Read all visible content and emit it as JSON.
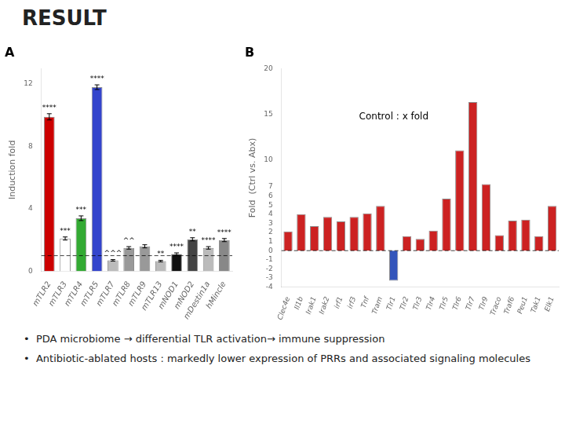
{
  "title": "RESULT",
  "chart_data": [
    {
      "type": "bar",
      "title": "A",
      "categories": [
        "mTLR2",
        "mTLR3",
        "mTLR4",
        "mTLR5",
        "mTLR7",
        "mTLR8",
        "mTLR9",
        "mTLR13",
        "mNOD1",
        "mNOD2",
        "mDestin1a",
        "hMincle"
      ],
      "values": [
        9.9,
        2.1,
        3.4,
        11.8,
        0.7,
        1.5,
        1.6,
        0.65,
        1.1,
        2.05,
        1.5,
        2.0
      ],
      "errors": [
        0.2,
        0.1,
        0.15,
        0.15,
        0.05,
        0.08,
        0.1,
        0.05,
        0.08,
        0.1,
        0.08,
        0.1
      ],
      "colors": [
        "#cc0000",
        "#ffffff",
        "#33aa33",
        "#3344cc",
        "#bbbbbb",
        "#999999",
        "#999999",
        "#bbbbbb",
        "#111111",
        "#444444",
        "#bbbbbb",
        "#888888"
      ],
      "stars": [
        "****",
        "***",
        "***",
        "****",
        "^^^",
        "^^",
        null,
        "**",
        "****",
        "**",
        "****",
        "****"
      ],
      "reference_y": 1.0,
      "ylabel": "Induction fold",
      "ylim": [
        0,
        13
      ],
      "yticks": [
        0,
        4,
        8,
        12
      ],
      "grid": false
    },
    {
      "type": "bar",
      "title": "B",
      "categories": [
        "Clec4e",
        "Il1b",
        "Irak1",
        "Irak2",
        "irf1",
        "irf3",
        "Tnf",
        "Tram",
        "Tlr1",
        "Tlr2",
        "Tlr3",
        "Tlr4",
        "Tlr5",
        "Tlr6",
        "Tlr7",
        "Tlr9",
        "Traco",
        "Traf6",
        "Peu1",
        "Tak1",
        "Elk1"
      ],
      "values": [
        2.1,
        4.0,
        2.7,
        3.7,
        3.2,
        3.7,
        4.1,
        4.9,
        -3.3,
        1.6,
        1.3,
        2.2,
        5.7,
        11.0,
        16.3,
        7.3,
        1.7,
        3.3,
        3.4,
        1.6,
        4.9
      ],
      "colors": [
        "#cc2222",
        "#cc2222",
        "#cc2222",
        "#cc2222",
        "#cc2222",
        "#cc2222",
        "#cc2222",
        "#cc2222",
        "#3355bb",
        "#cc2222",
        "#cc2222",
        "#cc2222",
        "#cc2222",
        "#cc2222",
        "#cc2222",
        "#cc2222",
        "#cc2222",
        "#cc2222",
        "#cc2222",
        "#cc2222",
        "#cc2222"
      ],
      "reference_y": 0,
      "annotation": "Control : x fold",
      "ylabel": "Fold  (Ctrl vs. Abx)",
      "ylim": [
        -4,
        20
      ],
      "yticks": [
        -4,
        -3,
        -2,
        -1,
        0,
        1,
        2,
        3,
        4,
        5,
        6,
        7,
        10,
        15,
        20
      ],
      "grid": false
    }
  ],
  "annotations": [
    "•  PDA microbiome → differential TLR activation→ immune suppression",
    "•  Antibiotic-ablated hosts : markedly lower expression of PRRs and associated signaling molecules"
  ]
}
